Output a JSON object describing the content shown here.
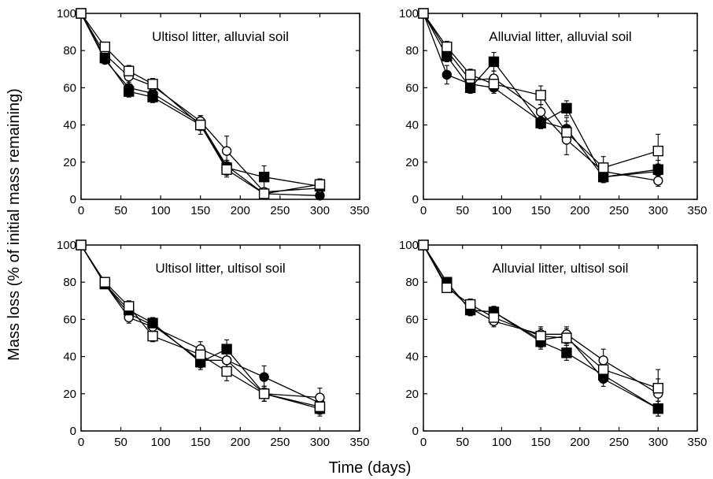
{
  "figure": {
    "ylabel": "Mass loss (% of initial mass remaining)",
    "xlabel": "Time (days)"
  },
  "chart_data": [
    {
      "type": "line",
      "title": "Ultisol litter, alluvial soil",
      "xlim": [
        0,
        350
      ],
      "ylim": [
        0,
        100
      ],
      "xticks": [
        0,
        50,
        100,
        150,
        200,
        250,
        300,
        350
      ],
      "yticks": [
        0,
        20,
        40,
        60,
        80,
        100
      ],
      "x": [
        0,
        30,
        60,
        90,
        150,
        183,
        230,
        300
      ],
      "series": [
        {
          "marker": "filled-circle",
          "values": [
            100,
            75,
            60,
            57,
            41,
            18,
            3,
            2
          ],
          "errors": [
            0,
            2,
            4,
            3,
            3,
            3,
            2,
            2
          ]
        },
        {
          "marker": "open-circle",
          "values": [
            100,
            78,
            66,
            61,
            42,
            26,
            4,
            6
          ],
          "errors": [
            0,
            2,
            3,
            3,
            3,
            8,
            2,
            3
          ]
        },
        {
          "marker": "filled-square",
          "values": [
            100,
            76,
            58,
            55,
            40,
            17,
            12,
            7
          ],
          "errors": [
            0,
            2,
            3,
            3,
            3,
            4,
            6,
            3
          ]
        },
        {
          "marker": "open-square",
          "values": [
            100,
            82,
            69,
            62,
            40,
            16,
            3,
            8
          ],
          "errors": [
            0,
            2,
            3,
            3,
            5,
            4,
            2,
            3
          ]
        }
      ]
    },
    {
      "type": "line",
      "title": "Alluvial litter, alluvial soil",
      "xlim": [
        0,
        350
      ],
      "ylim": [
        0,
        100
      ],
      "xticks": [
        0,
        50,
        100,
        150,
        200,
        250,
        300,
        350
      ],
      "yticks": [
        0,
        20,
        40,
        60,
        80,
        100
      ],
      "x": [
        0,
        30,
        60,
        90,
        150,
        183,
        230,
        300
      ],
      "series": [
        {
          "marker": "filled-circle",
          "values": [
            100,
            67,
            62,
            60,
            42,
            38,
            12,
            15
          ],
          "errors": [
            0,
            5,
            3,
            3,
            3,
            6,
            3,
            4
          ]
        },
        {
          "marker": "open-circle",
          "values": [
            100,
            80,
            64,
            65,
            47,
            32,
            15,
            10
          ],
          "errors": [
            0,
            3,
            4,
            4,
            4,
            8,
            4,
            3
          ]
        },
        {
          "marker": "filled-square",
          "values": [
            100,
            77,
            60,
            74,
            41,
            49,
            12,
            16
          ],
          "errors": [
            0,
            3,
            3,
            5,
            3,
            4,
            3,
            5
          ]
        },
        {
          "marker": "open-square",
          "values": [
            100,
            82,
            67,
            62,
            56,
            36,
            17,
            26
          ],
          "errors": [
            0,
            3,
            3,
            4,
            5,
            6,
            6,
            9
          ]
        }
      ]
    },
    {
      "type": "line",
      "title": "Ultisol litter, ultisol soil",
      "xlim": [
        0,
        350
      ],
      "ylim": [
        0,
        100
      ],
      "xticks": [
        0,
        50,
        100,
        150,
        200,
        250,
        300,
        350
      ],
      "yticks": [
        0,
        20,
        40,
        60,
        80,
        100
      ],
      "x": [
        0,
        30,
        60,
        90,
        150,
        183,
        230,
        300
      ],
      "series": [
        {
          "marker": "filled-circle",
          "values": [
            100,
            79,
            63,
            57,
            38,
            38,
            29,
            15
          ],
          "errors": [
            0,
            2,
            3,
            3,
            4,
            5,
            6,
            5
          ]
        },
        {
          "marker": "open-circle",
          "values": [
            100,
            79,
            61,
            56,
            44,
            38,
            20,
            18
          ],
          "errors": [
            0,
            2,
            3,
            3,
            4,
            5,
            4,
            5
          ]
        },
        {
          "marker": "filled-square",
          "values": [
            100,
            79,
            65,
            58,
            37,
            44,
            20,
            12
          ],
          "errors": [
            0,
            2,
            3,
            3,
            4,
            5,
            4,
            4
          ]
        },
        {
          "marker": "open-square",
          "values": [
            100,
            80,
            67,
            51,
            41,
            32,
            20,
            13
          ],
          "errors": [
            0,
            2,
            3,
            3,
            4,
            5,
            4,
            4
          ]
        }
      ]
    },
    {
      "type": "line",
      "title": "Alluvial litter, ultisol soil",
      "xlim": [
        0,
        350
      ],
      "ylim": [
        0,
        100
      ],
      "xticks": [
        0,
        50,
        100,
        150,
        200,
        250,
        300,
        350
      ],
      "yticks": [
        0,
        20,
        40,
        60,
        80,
        100
      ],
      "x": [
        0,
        30,
        60,
        90,
        150,
        183,
        230,
        300
      ],
      "series": [
        {
          "marker": "filled-circle",
          "values": [
            100,
            80,
            65,
            64,
            49,
            51,
            28,
            12
          ],
          "errors": [
            0,
            2,
            3,
            3,
            4,
            4,
            4,
            4
          ]
        },
        {
          "marker": "open-circle",
          "values": [
            100,
            78,
            66,
            59,
            52,
            52,
            38,
            20
          ],
          "errors": [
            0,
            2,
            3,
            3,
            4,
            4,
            6,
            8
          ]
        },
        {
          "marker": "filled-square",
          "values": [
            100,
            80,
            65,
            64,
            48,
            42,
            30,
            12
          ],
          "errors": [
            0,
            2,
            3,
            3,
            4,
            4,
            4,
            4
          ]
        },
        {
          "marker": "open-square",
          "values": [
            100,
            77,
            68,
            61,
            51,
            50,
            33,
            23
          ],
          "errors": [
            0,
            2,
            3,
            3,
            4,
            4,
            5,
            10
          ]
        }
      ]
    }
  ]
}
